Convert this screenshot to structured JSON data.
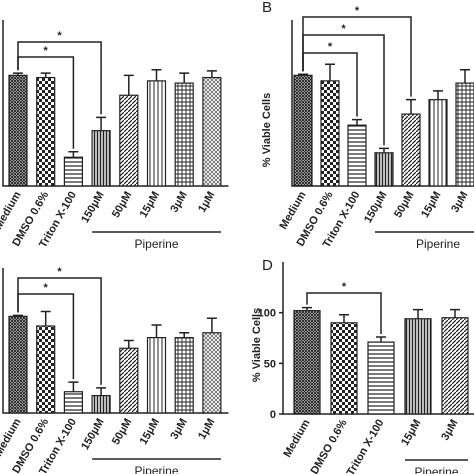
{
  "chart_data": [
    {
      "type": "bar",
      "categories": [
        "Medium",
        "DMSO 0.6%",
        "Triton X-100",
        "150μM",
        "50μM",
        "15μM",
        "3μM",
        "1μM"
      ],
      "values": [
        100,
        98,
        26,
        50,
        82,
        95,
        93,
        98
      ],
      "errors": [
        2,
        4,
        5,
        12,
        18,
        10,
        9,
        6
      ],
      "ylim": [
        0,
        150
      ],
      "group_label": "Piperine",
      "annotations": [
        "*",
        "*"
      ]
    },
    {
      "type": "bar",
      "panel": "B",
      "y_label": "% Viable Cells",
      "categories": [
        "Medium",
        "DMSO 0.6%",
        "Triton X-100",
        "150μM",
        "50μM",
        "15μM",
        "3μM"
      ],
      "values": [
        100,
        95,
        55,
        30,
        65,
        78,
        93
      ],
      "errors": [
        1,
        15,
        5,
        4,
        13,
        8,
        12
      ],
      "ylim": [
        0,
        150
      ],
      "group_label": "Piperine",
      "annotations": [
        "*",
        "*",
        "*"
      ]
    },
    {
      "type": "bar",
      "categories": [
        "Medium",
        "DMSO 0.6%",
        "Triton X-100",
        "150μM",
        "50μM",
        "15μM",
        "3μM",
        "1μM"
      ],
      "values": [
        100,
        90,
        22,
        18,
        67,
        78,
        78,
        83
      ],
      "errors": [
        1,
        15,
        10,
        8,
        8,
        13,
        5,
        15
      ],
      "ylim": [
        0,
        150
      ],
      "group_label": "Piperine",
      "annotations": [
        "*",
        "*"
      ]
    },
    {
      "type": "bar",
      "panel": "D",
      "y_label": "% Viable Cells",
      "categories": [
        "Medium",
        "DMSO 0.6%",
        "Triton X-100",
        "15μM",
        "3μM"
      ],
      "values": [
        102,
        90,
        71,
        94,
        95
      ],
      "errors": [
        3,
        8,
        5,
        9,
        8
      ],
      "ylim": [
        0,
        150
      ],
      "yticks": [
        0,
        50,
        100
      ],
      "group_label": "Piperine",
      "annotations": [
        "*"
      ]
    }
  ]
}
